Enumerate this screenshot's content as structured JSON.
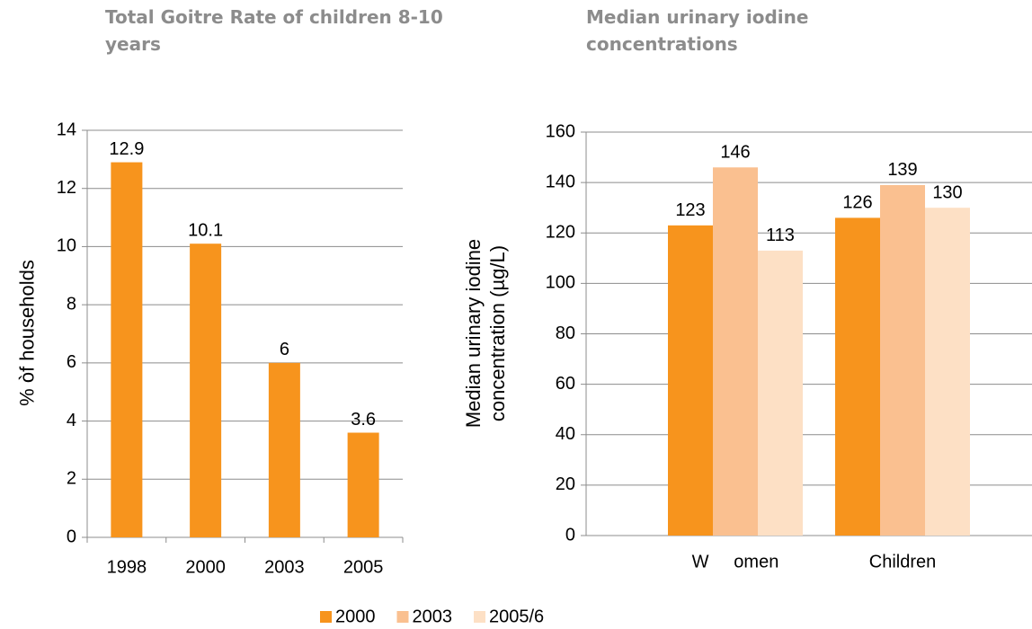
{
  "chart_data": [
    {
      "type": "bar",
      "title": "Total Goitre Rate of children 8-10 years",
      "y_label": "% òf households",
      "categories": [
        "1998",
        "2000",
        "2003",
        "2005"
      ],
      "values": [
        12.9,
        10.1,
        6,
        3.6
      ],
      "color": "#f7941d",
      "ylim": [
        0,
        14
      ],
      "yticks": [
        0,
        2,
        4,
        6,
        8,
        10,
        12,
        14
      ],
      "grid": true
    },
    {
      "type": "grouped_bar",
      "title": "Median urinary iodine concentrations",
      "y_label": "Median urinary iodine concentration (µg/L)",
      "categories": [
        "W     omen",
        "Children"
      ],
      "series": [
        {
          "name": "2000",
          "color": "#f7941d",
          "values": [
            123,
            126
          ]
        },
        {
          "name": "2003",
          "color": "#fac090",
          "values": [
            146,
            139
          ]
        },
        {
          "name": "2005/6",
          "color": "#fde0c5",
          "values": [
            113,
            130
          ]
        }
      ],
      "ylim": [
        0,
        160
      ],
      "yticks": [
        0,
        20,
        40,
        60,
        80,
        100,
        120,
        140,
        160
      ],
      "grid": true,
      "legend": "bottom"
    }
  ]
}
